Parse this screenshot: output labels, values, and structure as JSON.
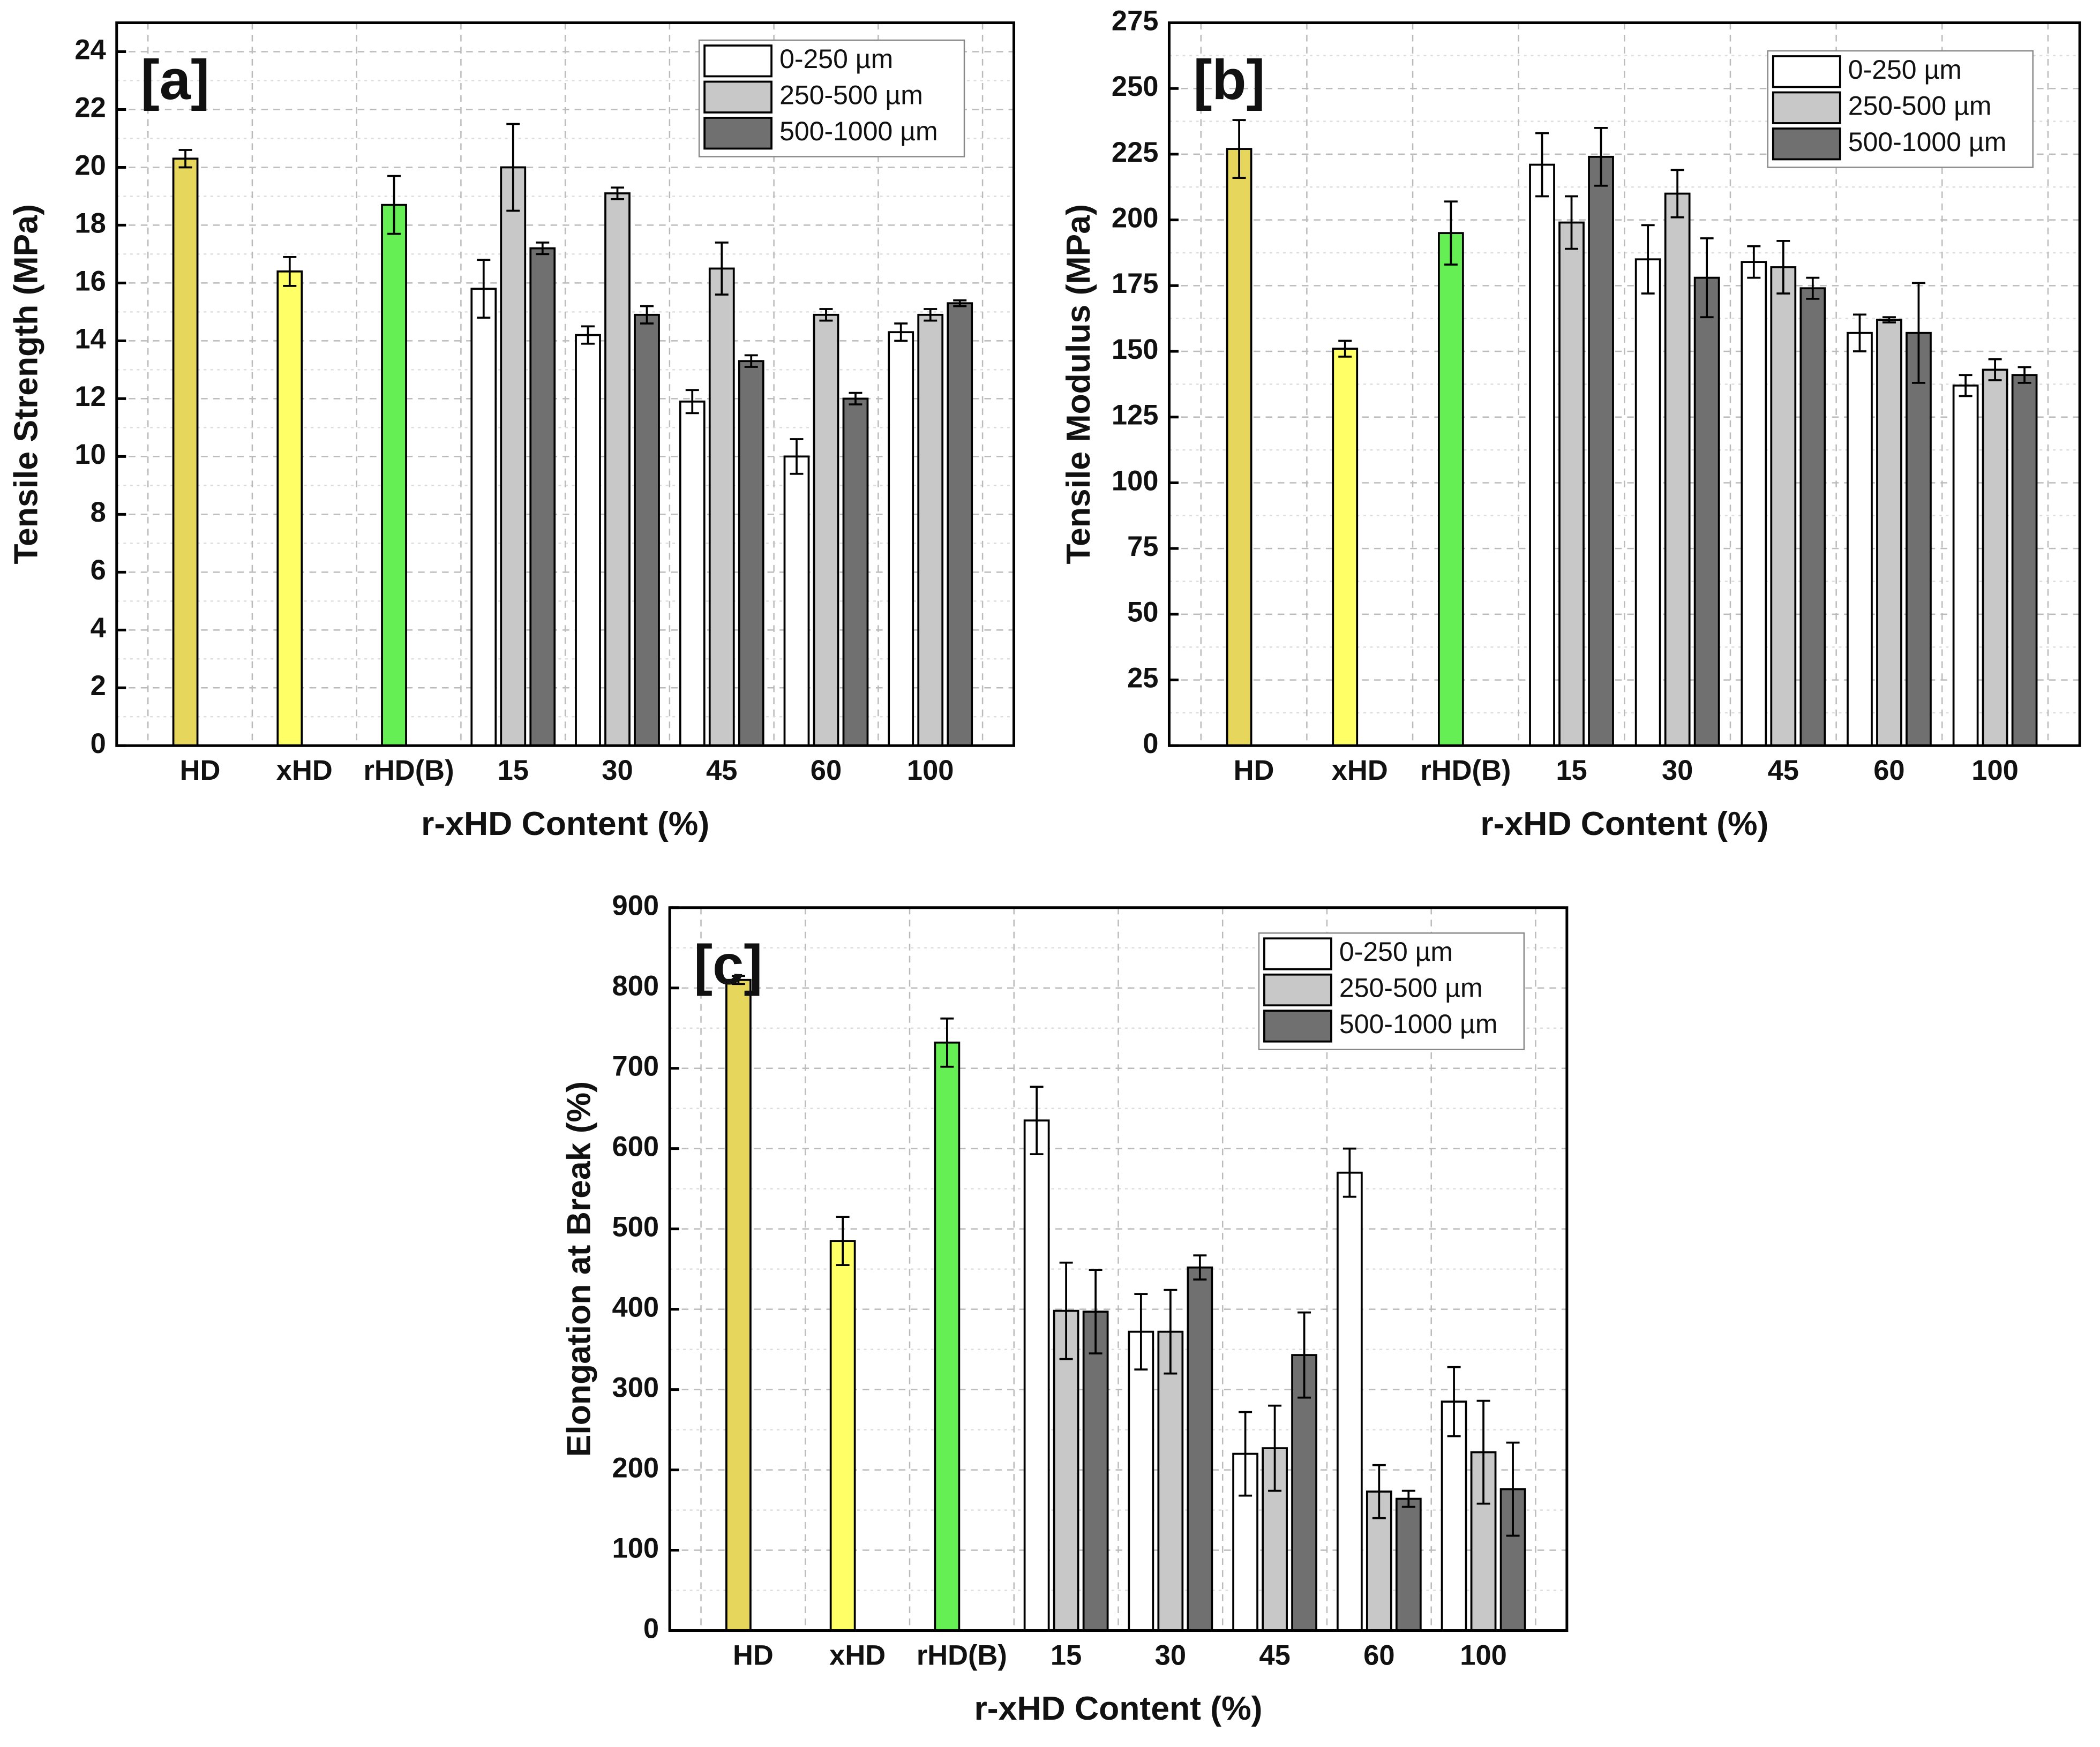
{
  "chart_data": [
    {
      "type": "bar",
      "panel_label": "[a]",
      "y_label": "Tensile Strength (MPa)",
      "x_label": "r-xHD Content (%)",
      "categories": [
        "HD",
        "xHD",
        "rHD(B)",
        "15",
        "30",
        "45",
        "60",
        "100"
      ],
      "reference": {
        "values": [
          20.3,
          16.4,
          18.7,
          null,
          null,
          null,
          null,
          null
        ],
        "errors": [
          0.3,
          0.5,
          1.0,
          null,
          null,
          null,
          null,
          null
        ],
        "colors": [
          "#e6d65c",
          "#ffff66",
          "#66ee55",
          null,
          null,
          null,
          null,
          null
        ]
      },
      "series": [
        {
          "name": "0-250 µm",
          "color": "#ffffff",
          "values": [
            null,
            null,
            null,
            15.8,
            14.2,
            11.9,
            10.0,
            14.3
          ],
          "errors": [
            null,
            null,
            null,
            1.0,
            0.3,
            0.4,
            0.6,
            0.3
          ]
        },
        {
          "name": "250-500 µm",
          "color": "#c8c8c8",
          "values": [
            null,
            null,
            null,
            20.0,
            19.1,
            16.5,
            14.9,
            14.9
          ],
          "errors": [
            null,
            null,
            null,
            1.5,
            0.2,
            0.9,
            0.2,
            0.2
          ]
        },
        {
          "name": "500-1000 µm",
          "color": "#707070",
          "values": [
            null,
            null,
            null,
            17.2,
            14.9,
            13.3,
            12.0,
            15.3
          ],
          "errors": [
            null,
            null,
            null,
            0.2,
            0.3,
            0.2,
            0.2,
            0.1
          ]
        }
      ],
      "ylim": [
        0,
        25
      ],
      "yticks": [
        0,
        2,
        4,
        6,
        8,
        10,
        12,
        14,
        16,
        18,
        20,
        22,
        24
      ],
      "grid": true,
      "legend": "upper right"
    },
    {
      "type": "bar",
      "panel_label": "[b]",
      "y_label": "Tensile Modulus (MPa)",
      "x_label": "r-xHD Content (%)",
      "categories": [
        "HD",
        "xHD",
        "rHD(B)",
        "15",
        "30",
        "45",
        "60",
        "100"
      ],
      "reference": {
        "values": [
          227,
          151,
          195,
          null,
          null,
          null,
          null,
          null
        ],
        "errors": [
          11,
          3,
          12,
          null,
          null,
          null,
          null,
          null
        ],
        "colors": [
          "#e6d65c",
          "#ffff66",
          "#66ee55",
          null,
          null,
          null,
          null,
          null
        ]
      },
      "series": [
        {
          "name": "0-250 µm",
          "color": "#ffffff",
          "values": [
            null,
            null,
            null,
            221,
            185,
            184,
            157,
            137
          ],
          "errors": [
            null,
            null,
            null,
            12,
            13,
            6,
            7,
            4
          ]
        },
        {
          "name": "250-500 µm",
          "color": "#c8c8c8",
          "values": [
            null,
            null,
            null,
            199,
            210,
            182,
            162,
            143
          ],
          "errors": [
            null,
            null,
            null,
            10,
            9,
            10,
            1,
            4
          ]
        },
        {
          "name": "500-1000 µm",
          "color": "#707070",
          "values": [
            null,
            null,
            null,
            224,
            178,
            174,
            157,
            141
          ],
          "errors": [
            null,
            null,
            null,
            11,
            15,
            4,
            19,
            3
          ]
        }
      ],
      "ylim": [
        0,
        275
      ],
      "yticks": [
        0,
        25,
        50,
        75,
        100,
        125,
        150,
        175,
        200,
        225,
        250,
        275
      ],
      "grid": true,
      "legend": "upper right"
    },
    {
      "type": "bar",
      "panel_label": "[c]",
      "y_label": "Elongation at Break (%)",
      "x_label": "r-xHD Content (%)",
      "categories": [
        "HD",
        "xHD",
        "rHD(B)",
        "15",
        "30",
        "45",
        "60",
        "100"
      ],
      "reference": {
        "values": [
          810,
          485,
          732,
          null,
          null,
          null,
          null,
          null
        ],
        "errors": [
          5,
          30,
          30,
          null,
          null,
          null,
          null,
          null
        ],
        "colors": [
          "#e6d65c",
          "#ffff66",
          "#66ee55",
          null,
          null,
          null,
          null,
          null
        ]
      },
      "series": [
        {
          "name": "0-250 µm",
          "color": "#ffffff",
          "values": [
            null,
            null,
            null,
            635,
            372,
            220,
            570,
            285
          ],
          "errors": [
            null,
            null,
            null,
            42,
            47,
            52,
            30,
            43
          ]
        },
        {
          "name": "250-500 µm",
          "color": "#c8c8c8",
          "values": [
            null,
            null,
            null,
            398,
            372,
            227,
            173,
            222
          ],
          "errors": [
            null,
            null,
            null,
            60,
            52,
            53,
            33,
            64
          ]
        },
        {
          "name": "500-1000 µm",
          "color": "#707070",
          "values": [
            null,
            null,
            null,
            397,
            452,
            343,
            164,
            176
          ],
          "errors": [
            null,
            null,
            null,
            52,
            15,
            53,
            10,
            58
          ]
        }
      ],
      "ylim": [
        0,
        900
      ],
      "yticks": [
        0,
        100,
        200,
        300,
        400,
        500,
        600,
        700,
        800,
        900
      ],
      "grid": true,
      "legend": "upper right"
    }
  ]
}
